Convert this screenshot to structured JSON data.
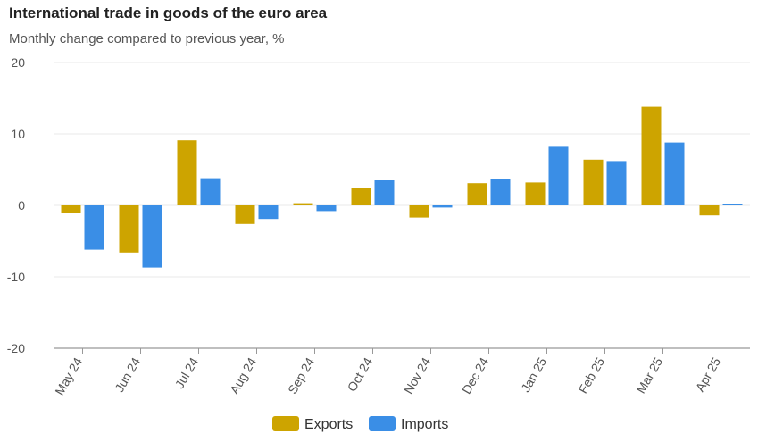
{
  "chart_data": {
    "type": "bar",
    "title": "International trade in goods of the euro area",
    "subtitle": "Monthly change compared to previous year, %",
    "xlabel": "",
    "ylabel": "",
    "ylim": [
      -20,
      20
    ],
    "yticks": [
      20,
      10,
      0,
      -10,
      -20
    ],
    "categories": [
      "May 24",
      "Jun 24",
      "Jul 24",
      "Aug 24",
      "Sep 24",
      "Oct 24",
      "Nov 24",
      "Dec 24",
      "Jan 25",
      "Feb 25",
      "Mar 25",
      "Apr 25"
    ],
    "series": [
      {
        "name": "Exports",
        "color": "#cda400",
        "values": [
          -1.0,
          -6.6,
          9.1,
          -2.6,
          0.3,
          2.5,
          -1.7,
          3.1,
          3.2,
          6.4,
          13.8,
          -1.4
        ]
      },
      {
        "name": "Imports",
        "color": "#3a8ee6",
        "values": [
          -6.2,
          -8.7,
          3.8,
          -1.9,
          -0.8,
          3.5,
          -0.3,
          3.7,
          8.2,
          6.2,
          8.8,
          0.2
        ]
      }
    ],
    "legend_position": "bottom-center",
    "grid": true
  }
}
